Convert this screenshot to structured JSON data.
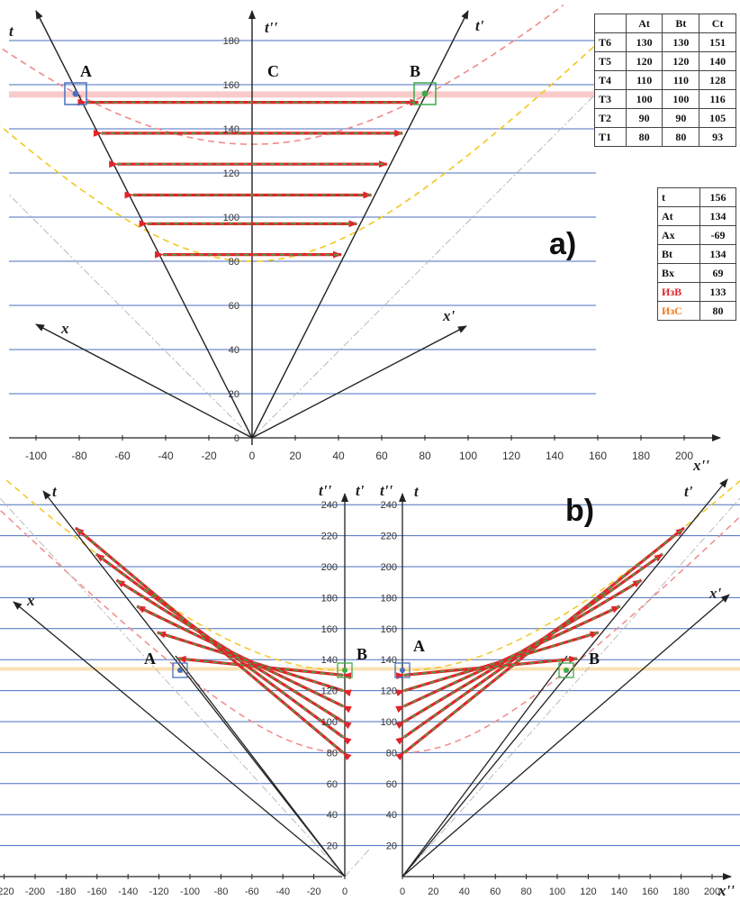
{
  "panels": {
    "a": {
      "label": "a)",
      "axis_labels": {
        "t": "t",
        "t_double": "t''",
        "t_prime": "t'",
        "x": "x",
        "x_prime": "x'",
        "x_double": "x''"
      },
      "points": {
        "A": "A",
        "B": "B",
        "C": "C"
      },
      "y_ticks": [
        "20",
        "40",
        "60",
        "80",
        "100",
        "120",
        "140",
        "160",
        "180"
      ],
      "x_ticks": [
        "-100",
        "-80",
        "-60",
        "-40",
        "-20",
        "0",
        "20",
        "40",
        "60",
        "80",
        "100",
        "120",
        "140",
        "160",
        "180",
        "200"
      ],
      "origin_label": "0",
      "arrows_t_start": [
        150,
        136,
        122,
        108,
        95,
        81
      ],
      "arrows_t_end": [
        151,
        140,
        128,
        116,
        105,
        93
      ],
      "curves": {
        "hyperbola_B": 133,
        "hyperbola_C": 80
      }
    },
    "b": {
      "label": "b)",
      "left": {
        "axis_labels": {
          "t": "t",
          "t_double": "t''",
          "t_prime": "t'",
          "x": "x"
        },
        "points": {
          "A": "A",
          "B": "B"
        },
        "y_ticks": [
          "20",
          "40",
          "60",
          "80",
          "100",
          "120",
          "140",
          "160",
          "180",
          "200",
          "220",
          "240"
        ],
        "x_ticks": [
          "-220",
          "-200",
          "-180",
          "-160",
          "-140",
          "-120",
          "-100",
          "-80",
          "-60",
          "-40",
          "-20",
          "0"
        ]
      },
      "right": {
        "axis_labels": {
          "t_double": "t''",
          "t": "t",
          "t_prime": "t'",
          "x_prime": "x'",
          "x_double": "x''"
        },
        "points": {
          "A": "A",
          "B": "B"
        },
        "y_ticks": [
          "20",
          "40",
          "60",
          "80",
          "100",
          "120",
          "140",
          "160",
          "180",
          "200",
          "220",
          "240"
        ],
        "x_ticks": [
          "0",
          "20",
          "40",
          "60",
          "80",
          "100",
          "120",
          "140",
          "160",
          "180",
          "200"
        ]
      },
      "arrow_t_values": [
        80,
        90,
        100,
        110,
        120,
        130
      ]
    }
  },
  "table_events": {
    "headers": [
      "",
      "At",
      "Bt",
      "Ct"
    ],
    "rows": [
      [
        "T6",
        "130",
        "130",
        "151"
      ],
      [
        "T5",
        "120",
        "120",
        "140"
      ],
      [
        "T4",
        "110",
        "110",
        "128"
      ],
      [
        "T3",
        "100",
        "100",
        "116"
      ],
      [
        "T2",
        "90",
        "90",
        "105"
      ],
      [
        "T1",
        "80",
        "80",
        "93"
      ]
    ]
  },
  "table_values": {
    "rows": [
      {
        "label": "t",
        "value": "156",
        "color": ""
      },
      {
        "label": "At",
        "value": "134",
        "color": ""
      },
      {
        "label": "Ax",
        "value": "-69",
        "color": ""
      },
      {
        "label": "Bt",
        "value": "134",
        "color": ""
      },
      {
        "label": "Bx",
        "value": "69",
        "color": ""
      },
      {
        "label": "ИзВ",
        "value": "133",
        "color": "red"
      },
      {
        "label": "ИзС",
        "value": "80",
        "color": "orange"
      }
    ]
  },
  "colors": {
    "grid": "#4a6fbd",
    "axis": "#222222",
    "arrow_red": "#e0252b",
    "arrow_green": "#3daa4a",
    "hyperbola_pink": "#f08a8a",
    "hyperbola_yellow": "#f2c81e",
    "highlight_pink": "#f6b3b3",
    "highlight_orange": "#f8d9a0",
    "box_A": "#4a6fbd",
    "box_B": "#3daa4a"
  }
}
